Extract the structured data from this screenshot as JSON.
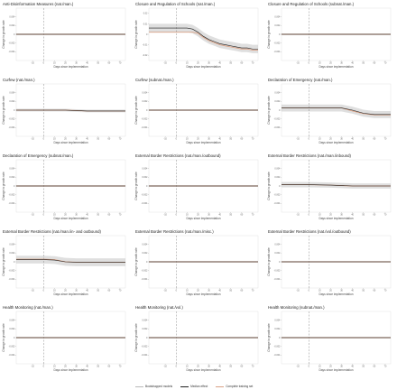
{
  "colors": {
    "bootstrap": "#b9b9b9",
    "median": "#1f1f1f",
    "complete": "#d9a185",
    "implementation_line": "#8c8c8c",
    "panel_border": "#dddddd"
  },
  "legend": {
    "items": [
      {
        "label": "Bootstrapped models",
        "color": "#b9b9b9"
      },
      {
        "label": "Median effect",
        "color": "#1f1f1f"
      },
      {
        "label": "Complete training set",
        "color": "#d9a185"
      }
    ]
  },
  "chart_data": {
    "type": "line",
    "layout": "small-multiples 5x3",
    "xlabel": "Days since implementation",
    "ylabel": "Change in growth rate",
    "x_ticks": [
      -10,
      0,
      10,
      20,
      30,
      40,
      50,
      60,
      70
    ],
    "xlim": [
      -25,
      75
    ],
    "implementation_x": 0,
    "panels": [
      {
        "title": "Anti-Disinformation Measures (nat./man.)",
        "ylim": [
          -0.006,
          0.006
        ],
        "y_ticks": [
          0.004,
          0.002,
          0,
          -0.002,
          -0.004
        ],
        "x": [
          -25,
          75
        ],
        "median": [
          0,
          0
        ],
        "complete": [
          0,
          0
        ],
        "band": 0.0002
      },
      {
        "title": "Closure and Regulation of Schools (nat./man.)",
        "ylim": [
          -0.025,
          0.025
        ],
        "y_ticks": [
          0.02,
          0.01,
          0,
          -0.01,
          -0.02
        ],
        "x": [
          -25,
          -10,
          0,
          10,
          15,
          20,
          25,
          30,
          35,
          40,
          45,
          50,
          55,
          60,
          65,
          70,
          75
        ],
        "median": [
          0.006,
          0.006,
          0.006,
          0.006,
          0.005,
          0.002,
          -0.002,
          -0.005,
          -0.007,
          -0.009,
          -0.01,
          -0.011,
          -0.012,
          -0.013,
          -0.013,
          -0.014,
          -0.014
        ],
        "complete": [
          0.002,
          0.002,
          0.002,
          0.002,
          0.002,
          0.001,
          -0.003,
          -0.006,
          -0.008,
          -0.01,
          -0.011,
          -0.012,
          -0.013,
          -0.014,
          -0.014,
          -0.015,
          -0.015
        ],
        "band": 0.004
      },
      {
        "title": "Closure and Regulation of Schools (subnat./man.)",
        "ylim": [
          -0.006,
          0.006
        ],
        "y_ticks": [
          0.004,
          0.002,
          0,
          -0.002,
          -0.004
        ],
        "x": [
          -25,
          75
        ],
        "median": [
          0,
          0
        ],
        "complete": [
          0,
          0
        ],
        "band": 0.0002
      },
      {
        "title": "Curfew (nat./man.)",
        "ylim": [
          -0.006,
          0.006
        ],
        "y_ticks": [
          0.004,
          0.002,
          0,
          -0.002,
          -0.004
        ],
        "x": [
          -25,
          0,
          20,
          40,
          75
        ],
        "median": [
          0,
          0,
          0,
          -0.0002,
          -0.0002
        ],
        "complete": [
          0,
          0,
          0,
          -0.0002,
          -0.0002
        ],
        "band": 0.0003
      },
      {
        "title": "Curfew (subnat./man.)",
        "ylim": [
          -0.006,
          0.006
        ],
        "y_ticks": [
          0.004,
          0.002,
          0,
          -0.002,
          -0.004
        ],
        "x": [
          -25,
          75
        ],
        "median": [
          0,
          0
        ],
        "complete": [
          0,
          0
        ],
        "band": 0.0002
      },
      {
        "title": "Declaration of Emergency (nat./man.)",
        "ylim": [
          -0.006,
          0.006
        ],
        "y_ticks": [
          0.004,
          0.002,
          0,
          -0.002,
          -0.004
        ],
        "x": [
          -25,
          0,
          20,
          30,
          40,
          50,
          60,
          75
        ],
        "median": [
          0.0005,
          0.0005,
          0.0005,
          0.0005,
          0.0,
          -0.0007,
          -0.001,
          -0.001
        ],
        "complete": [
          0.0005,
          0.0005,
          0.0005,
          0.0005,
          -0.0002,
          -0.0008,
          -0.0011,
          -0.0011
        ],
        "band": 0.0008
      },
      {
        "title": "Declaration of Emergency (subnat./man.)",
        "ylim": [
          -0.006,
          0.006
        ],
        "y_ticks": [
          0.004,
          0.002,
          0,
          -0.002,
          -0.004
        ],
        "x": [
          -25,
          75
        ],
        "median": [
          0,
          0
        ],
        "complete": [
          0,
          0
        ],
        "band": 0.0002
      },
      {
        "title": "External Border Restrictions (nat./man./outbound)",
        "ylim": [
          -0.006,
          0.006
        ],
        "y_ticks": [
          0.004,
          0.002,
          0,
          -0.002,
          -0.004
        ],
        "x": [
          -25,
          75
        ],
        "median": [
          0,
          0
        ],
        "complete": [
          0,
          0
        ],
        "band": 0.0002
      },
      {
        "title": "External Border Restrictions (nat./man./inbound)",
        "ylim": [
          -0.006,
          0.006
        ],
        "y_ticks": [
          0.004,
          0.002,
          0,
          -0.002,
          -0.004
        ],
        "x": [
          -25,
          0,
          20,
          40,
          75
        ],
        "median": [
          0.0003,
          0.0003,
          0.0002,
          0.0,
          0.0
        ],
        "complete": [
          0.0003,
          0.0003,
          0.0002,
          0.0,
          0.0
        ],
        "band": 0.0006
      },
      {
        "title": "External Border Restrictions (nat./man./in- and outbound)",
        "ylim": [
          -0.006,
          0.006
        ],
        "y_ticks": [
          0.004,
          0.002,
          0,
          -0.002,
          -0.004
        ],
        "x": [
          -25,
          0,
          10,
          20,
          30,
          75
        ],
        "median": [
          0.0005,
          0.0005,
          0.0004,
          0.0,
          -0.0001,
          -0.0001
        ],
        "complete": [
          0.0006,
          0.0006,
          0.0005,
          0.0,
          -0.0001,
          -0.0001
        ],
        "band": 0.0009
      },
      {
        "title": "External Border Restrictions (nat./man./misc.)",
        "ylim": [
          -0.006,
          0.006
        ],
        "y_ticks": [
          0.004,
          0.002,
          0,
          -0.002,
          -0.004
        ],
        "x": [
          -25,
          75
        ],
        "median": [
          0,
          0
        ],
        "complete": [
          0,
          0
        ],
        "band": 0.0002
      },
      {
        "title": "External Border Restrictions (nat./vol./outbound)",
        "ylim": [
          -0.006,
          0.006
        ],
        "y_ticks": [
          0.004,
          0.002,
          0,
          -0.002,
          -0.004
        ],
        "x": [
          -25,
          75
        ],
        "median": [
          0,
          0
        ],
        "complete": [
          0,
          0
        ],
        "band": 0.0002
      },
      {
        "title": "Health Monitoring (nat./man.)",
        "ylim": [
          -0.006,
          0.006
        ],
        "y_ticks": [
          0.004,
          0.002,
          0,
          -0.002,
          -0.004
        ],
        "x": [
          -25,
          75
        ],
        "median": [
          0,
          0
        ],
        "complete": [
          0,
          0
        ],
        "band": 0.0002
      },
      {
        "title": "Health Monitoring (nat./vol.)",
        "ylim": [
          -0.006,
          0.006
        ],
        "y_ticks": [
          0.004,
          0.002,
          0,
          -0.002,
          -0.004
        ],
        "x": [
          -25,
          75
        ],
        "median": [
          0,
          0
        ],
        "complete": [
          0,
          0
        ],
        "band": 0.0002
      },
      {
        "title": "Health Monitoring (subnat./man.)",
        "ylim": [
          -0.006,
          0.006
        ],
        "y_ticks": [
          0.004,
          0.002,
          0,
          -0.002,
          -0.004
        ],
        "x": [
          -25,
          75
        ],
        "median": [
          0,
          0
        ],
        "complete": [
          0,
          0
        ],
        "band": 0.0002
      }
    ]
  }
}
